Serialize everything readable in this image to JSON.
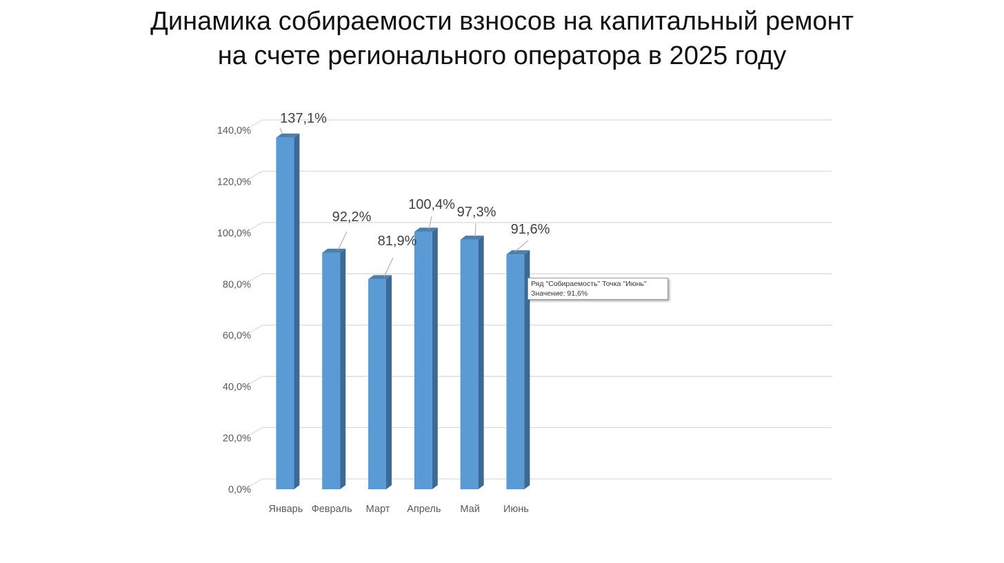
{
  "title_line1": "Динамика собираемости взносов на капитальный ремонт",
  "title_line2": "на счете регионального оператора в 2025 году",
  "tooltip": {
    "line1": "Ряд \"Собираемость\" Точка \"Июнь\"",
    "line2": "Значение: 91,6%"
  },
  "colors": {
    "bar_front": "#5b9bd5",
    "bar_side": "#3d6a95",
    "bar_top": "#4a7fae",
    "grid": "#d9d9d9",
    "axis_text": "#595959",
    "label_text": "#404040"
  },
  "chart_data": {
    "type": "bar",
    "style": "3d-column",
    "title": "Динамика собираемости взносов на капитальный ремонт на счете регионального оператора в 2025 году",
    "categories": [
      "Январь",
      "Февраль",
      "Март",
      "Апрель",
      "Май",
      "Июнь"
    ],
    "series": [
      {
        "name": "Собираемость",
        "values": [
          137.1,
          92.2,
          81.9,
          100.4,
          97.3,
          91.6
        ],
        "labels": [
          "137,1%",
          "92,2%",
          "81,9%",
          "100,4%",
          "97,3%",
          "91,6%"
        ]
      }
    ],
    "yticks": [
      "0,0%",
      "20,0%",
      "40,0%",
      "60,0%",
      "80,0%",
      "100,0%",
      "120,0%",
      "140,0%"
    ],
    "ylim": [
      0,
      140
    ],
    "grid": true,
    "legend": "none"
  }
}
